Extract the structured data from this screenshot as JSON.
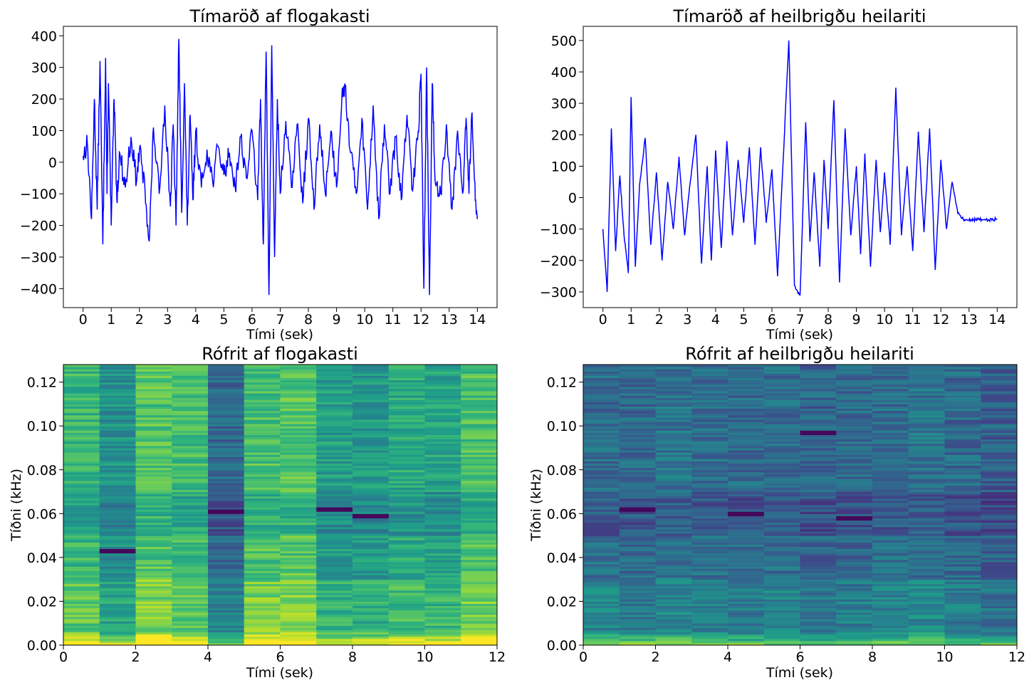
{
  "chart_data": [
    {
      "type": "line",
      "title": "Tímaröð af flogakasti",
      "xlabel": "Tími (sek)",
      "ylabel": "",
      "xlim": [
        -0.7,
        14.7
      ],
      "ylim": [
        -460,
        430
      ],
      "xticks": [
        "0",
        "1",
        "2",
        "3",
        "4",
        "5",
        "6",
        "7",
        "8",
        "9",
        "10",
        "11",
        "12",
        "13",
        "14"
      ],
      "yticks": [
        "−400",
        "−300",
        "−200",
        "−100",
        "0",
        "100",
        "200",
        "300",
        "400"
      ],
      "ytick_values": [
        -400,
        -300,
        -200,
        -100,
        0,
        100,
        200,
        300,
        400
      ],
      "color": "#0000ff",
      "series": [
        {
          "x": [
            0,
            0.15,
            0.3,
            0.4,
            0.5,
            0.6,
            0.7,
            0.8,
            0.85,
            0.9,
            1.0,
            1.1,
            1.2,
            1.3,
            1.5,
            1.7,
            1.9,
            2.0,
            2.2,
            2.35,
            2.5,
            2.7,
            2.9,
            3.1,
            3.2,
            3.3,
            3.4,
            3.5,
            3.6,
            3.7,
            3.8,
            3.9,
            4.0,
            4.2,
            4.4,
            4.6,
            4.8,
            5.0,
            5.2,
            5.4,
            5.6,
            5.8,
            6.0,
            6.2,
            6.3,
            6.4,
            6.5,
            6.6,
            6.7,
            6.8,
            6.9,
            7.0,
            7.2,
            7.4,
            7.6,
            7.8,
            8.0,
            8.2,
            8.4,
            8.6,
            8.8,
            9.0,
            9.2,
            9.3,
            9.5,
            9.7,
            9.9,
            10.1,
            10.3,
            10.5,
            10.7,
            10.9,
            11.1,
            11.3,
            11.5,
            11.7,
            11.9,
            12.0,
            12.1,
            12.2,
            12.3,
            12.4,
            12.5,
            12.7,
            12.9,
            13.1,
            13.3,
            13.5,
            13.6,
            13.7,
            13.8,
            13.9,
            14.0
          ],
          "y": [
            20,
            60,
            -180,
            200,
            -150,
            320,
            -260,
            330,
            -100,
            250,
            -200,
            200,
            -120,
            30,
            -80,
            80,
            -60,
            40,
            -90,
            -250,
            110,
            -100,
            180,
            -140,
            120,
            -200,
            390,
            -160,
            250,
            -200,
            150,
            -120,
            100,
            -80,
            40,
            -60,
            50,
            -40,
            30,
            -80,
            80,
            -50,
            100,
            -120,
            200,
            -260,
            350,
            -420,
            370,
            -300,
            200,
            -100,
            130,
            -80,
            120,
            -130,
            140,
            -150,
            120,
            -100,
            100,
            -80,
            230,
            240,
            30,
            -100,
            140,
            -150,
            180,
            -180,
            120,
            -100,
            80,
            -120,
            150,
            -90,
            100,
            280,
            -400,
            300,
            -420,
            250,
            -60,
            -100,
            120,
            -150,
            100,
            -90,
            140,
            -100,
            150,
            -60,
            -180
          ]
        }
      ]
    },
    {
      "type": "line",
      "title": "Tímaröð af heilbrigðu heilariti",
      "xlabel": "Tími (sek)",
      "ylabel": "",
      "xlim": [
        -0.7,
        14.7
      ],
      "ylim": [
        -350,
        545
      ],
      "xticks": [
        "0",
        "1",
        "2",
        "3",
        "4",
        "5",
        "6",
        "7",
        "8",
        "9",
        "10",
        "11",
        "12",
        "13",
        "14"
      ],
      "yticks": [
        "−300",
        "−200",
        "−100",
        "0",
        "100",
        "200",
        "300",
        "400",
        "500"
      ],
      "ytick_values": [
        -300,
        -200,
        -100,
        0,
        100,
        200,
        300,
        400,
        500
      ],
      "color": "#0000ff",
      "series": [
        {
          "x": [
            0,
            0.15,
            0.3,
            0.45,
            0.6,
            0.75,
            0.9,
            1.0,
            1.15,
            1.3,
            1.5,
            1.7,
            1.9,
            2.1,
            2.3,
            2.5,
            2.7,
            2.9,
            3.1,
            3.3,
            3.5,
            3.7,
            3.85,
            4.0,
            4.2,
            4.4,
            4.6,
            4.8,
            5.0,
            5.2,
            5.4,
            5.6,
            5.8,
            6.0,
            6.2,
            6.4,
            6.6,
            6.8,
            7.0,
            7.2,
            7.35,
            7.5,
            7.7,
            7.85,
            8.0,
            8.2,
            8.4,
            8.6,
            8.8,
            9.0,
            9.15,
            9.3,
            9.5,
            9.7,
            9.85,
            10.0,
            10.2,
            10.4,
            10.6,
            10.8,
            11.0,
            11.2,
            11.4,
            11.6,
            11.8,
            12.0,
            12.2,
            12.4,
            12.6,
            12.8,
            13.0,
            13.15,
            13.3,
            13.5,
            13.7,
            13.85,
            14.0
          ],
          "y": [
            -100,
            -300,
            220,
            -170,
            70,
            -120,
            -240,
            320,
            -220,
            40,
            190,
            -150,
            80,
            -200,
            50,
            -100,
            130,
            -120,
            50,
            200,
            -210,
            100,
            -200,
            150,
            -160,
            180,
            -120,
            120,
            -80,
            160,
            -150,
            160,
            -80,
            90,
            -250,
            120,
            500,
            -280,
            -310,
            240,
            -140,
            80,
            -220,
            120,
            -100,
            310,
            -270,
            220,
            -120,
            100,
            -180,
            140,
            -220,
            120,
            -110,
            80,
            -150,
            350,
            -120,
            100,
            -170,
            210,
            -110,
            220,
            -230,
            120,
            -100,
            50,
            -50,
            -70,
            -70,
            -70,
            -70,
            -70,
            -70,
            -70,
            -70
          ]
        }
      ]
    },
    {
      "type": "heatmap",
      "title": "Rófrit af flogakasti",
      "xlabel": "Tími (sek)",
      "ylabel": "Tíðni (kHz)",
      "xlim": [
        0,
        12
      ],
      "ylim": [
        0,
        0.128
      ],
      "xticks": [
        "0",
        "2",
        "4",
        "6",
        "8",
        "10",
        "12"
      ],
      "xtick_values": [
        0,
        2,
        4,
        6,
        8,
        10,
        12
      ],
      "yticks": [
        "0.00",
        "0.02",
        "0.04",
        "0.06",
        "0.08",
        "0.10",
        "0.12"
      ],
      "ytick_values": [
        0,
        0.02,
        0.04,
        0.06,
        0.08,
        0.1,
        0.12
      ],
      "colormap": "viridis",
      "column_intensity": [
        0.66,
        0.5,
        0.72,
        0.68,
        0.34,
        0.7,
        0.72,
        0.56,
        0.54,
        0.6,
        0.58,
        0.7
      ],
      "dark_bands": [
        {
          "col": 4,
          "freq": 0.061
        },
        {
          "col": 7,
          "freq": 0.062
        },
        {
          "col": 8,
          "freq": 0.059
        },
        {
          "col": 1,
          "freq": 0.043
        }
      ]
    },
    {
      "type": "heatmap",
      "title": "Rófrit af heilbrigðu heilariti",
      "xlabel": "Tími (sek)",
      "ylabel": "Tíðni (kHz)",
      "xlim": [
        0,
        12
      ],
      "ylim": [
        0,
        0.128
      ],
      "xticks": [
        "0",
        "2",
        "4",
        "6",
        "8",
        "10",
        "12"
      ],
      "xtick_values": [
        0,
        2,
        4,
        6,
        8,
        10,
        12
      ],
      "yticks": [
        "0.00",
        "0.02",
        "0.04",
        "0.06",
        "0.08",
        "0.10",
        "0.12"
      ],
      "ytick_values": [
        0,
        0.02,
        0.04,
        0.06,
        0.08,
        0.1,
        0.12
      ],
      "colormap": "viridis",
      "column_intensity": [
        0.36,
        0.34,
        0.38,
        0.36,
        0.34,
        0.36,
        0.32,
        0.34,
        0.36,
        0.38,
        0.34,
        0.3
      ],
      "dark_bands": [
        {
          "col": 7,
          "freq": 0.058
        },
        {
          "col": 6,
          "freq": 0.097
        },
        {
          "col": 4,
          "freq": 0.06
        },
        {
          "col": 1,
          "freq": 0.062
        }
      ]
    }
  ]
}
